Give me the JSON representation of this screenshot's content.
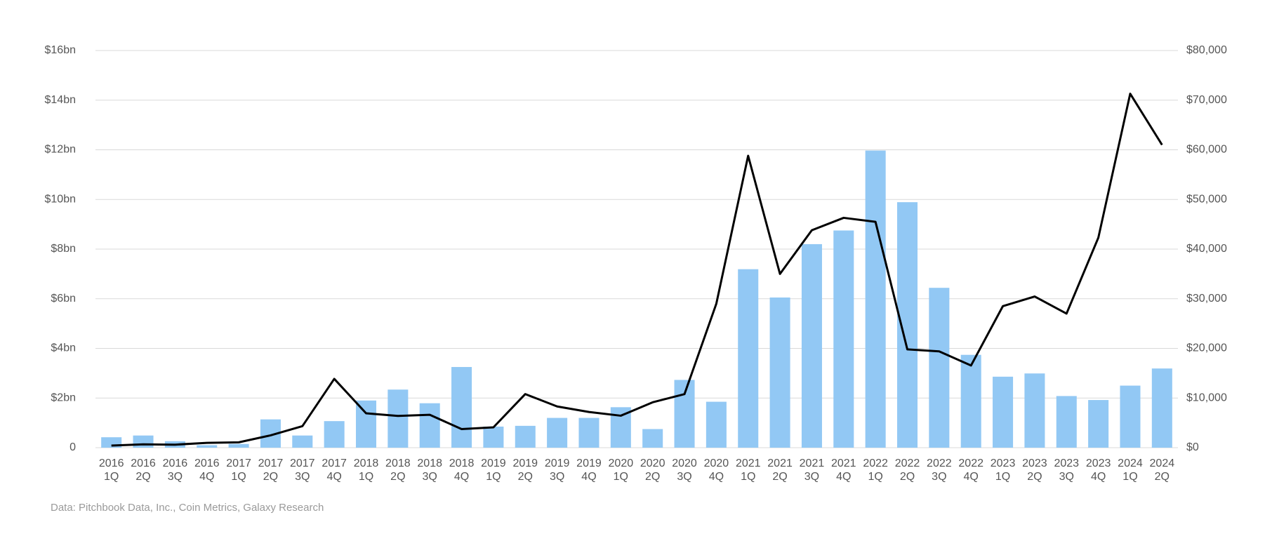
{
  "chart_data": {
    "type": "bar",
    "source": "Data: Pitchbook Data, Inc., Coin Metrics, Galaxy Research",
    "categories": [
      [
        "2016",
        "1Q"
      ],
      [
        "2016",
        "2Q"
      ],
      [
        "2016",
        "3Q"
      ],
      [
        "2016",
        "4Q"
      ],
      [
        "2017",
        "1Q"
      ],
      [
        "2017",
        "2Q"
      ],
      [
        "2017",
        "3Q"
      ],
      [
        "2017",
        "4Q"
      ],
      [
        "2018",
        "1Q"
      ],
      [
        "2018",
        "2Q"
      ],
      [
        "2018",
        "3Q"
      ],
      [
        "2018",
        "4Q"
      ],
      [
        "2019",
        "1Q"
      ],
      [
        "2019",
        "2Q"
      ],
      [
        "2019",
        "3Q"
      ],
      [
        "2019",
        "4Q"
      ],
      [
        "2020",
        "1Q"
      ],
      [
        "2020",
        "2Q"
      ],
      [
        "2020",
        "3Q"
      ],
      [
        "2020",
        "4Q"
      ],
      [
        "2021",
        "1Q"
      ],
      [
        "2021",
        "2Q"
      ],
      [
        "2021",
        "3Q"
      ],
      [
        "2021",
        "4Q"
      ],
      [
        "2022",
        "1Q"
      ],
      [
        "2022",
        "2Q"
      ],
      [
        "2022",
        "3Q"
      ],
      [
        "2022",
        "4Q"
      ],
      [
        "2023",
        "1Q"
      ],
      [
        "2023",
        "2Q"
      ],
      [
        "2023",
        "3Q"
      ],
      [
        "2023",
        "4Q"
      ],
      [
        "2024",
        "1Q"
      ],
      [
        "2024",
        "2Q"
      ]
    ],
    "series": [
      {
        "type": "bar",
        "color": "#92c8f4",
        "values": [
          0.42,
          0.49,
          0.26,
          0.1,
          0.15,
          1.14,
          0.49,
          1.07,
          1.9,
          2.34,
          1.79,
          3.25,
          0.85,
          0.88,
          1.2,
          1.2,
          1.63,
          0.75,
          2.73,
          1.85,
          7.19,
          6.05,
          8.2,
          8.75,
          11.97,
          9.89,
          6.44,
          3.74,
          2.86,
          2.99,
          2.08,
          1.92,
          2.5,
          3.19
        ]
      },
      {
        "type": "line",
        "axis": "y2",
        "color": "#000000",
        "values": [
          416,
          673,
          609,
          964,
          1080,
          2480,
          4340,
          13860,
          6930,
          6400,
          6630,
          3740,
          4100,
          10800,
          8300,
          7190,
          6440,
          9140,
          10780,
          28990,
          58800,
          35000,
          43800,
          46300,
          45500,
          19800,
          19400,
          16550,
          28500,
          30450,
          27000,
          42300,
          71300,
          61000
        ]
      }
    ],
    "ylim": [
      0,
      16
    ],
    "yticks": [
      {
        "value": 0,
        "label": "0"
      },
      {
        "value": 2,
        "label": "$2bn"
      },
      {
        "value": 4,
        "label": "$4bn"
      },
      {
        "value": 6,
        "label": "$6bn"
      },
      {
        "value": 8,
        "label": "$8bn"
      },
      {
        "value": 10,
        "label": "$10bn"
      },
      {
        "value": 12,
        "label": "$12bn"
      },
      {
        "value": 14,
        "label": "$14bn"
      },
      {
        "value": 16,
        "label": "$16bn"
      }
    ],
    "y2lim": [
      0,
      80000
    ],
    "y2ticks": [
      {
        "value": 0,
        "label": "$0"
      },
      {
        "value": 10000,
        "label": "$10,000"
      },
      {
        "value": 20000,
        "label": "$20,000"
      },
      {
        "value": 30000,
        "label": "$30,000"
      },
      {
        "value": 40000,
        "label": "$40,000"
      },
      {
        "value": 50000,
        "label": "$50,000"
      },
      {
        "value": 60000,
        "label": "$60,000"
      },
      {
        "value": 70000,
        "label": "$70,000"
      },
      {
        "value": 80000,
        "label": "$80,000"
      }
    ],
    "grid": true
  }
}
